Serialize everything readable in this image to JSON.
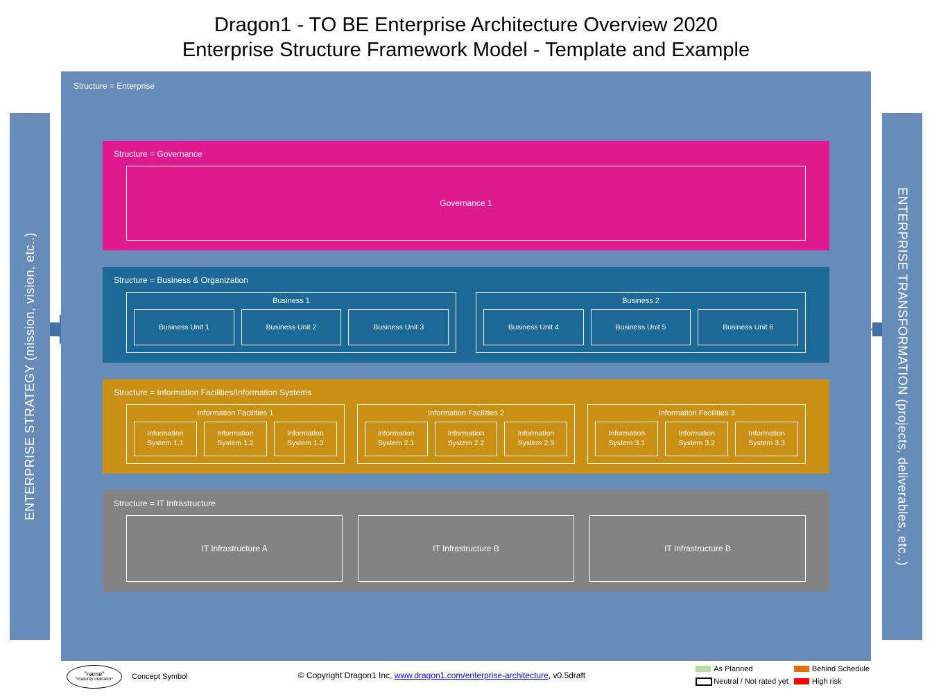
{
  "title": {
    "line1": "Dragon1 - TO BE Enterprise Architecture Overview 2020",
    "line2": "Enterprise Structure Framework Model - Template and Example"
  },
  "colors": {
    "pillar": "#688cb9",
    "enterprise_bg": "#688cb9",
    "governance_bg": "#e01a8e",
    "business_bg": "#1c6997",
    "information_bg": "#c99014",
    "it_bg": "#838383",
    "arrow": "#416fa6",
    "legend_green": "#b6dba0",
    "legend_orange": "#e46c0a",
    "legend_red": "#ff0000"
  },
  "pillars": {
    "left": "ENTERPRISE STRATEGY (mission, vision, etc..)",
    "right": "ENTERPRISE TRANSFORMATION (projects, deliverables, etc..)"
  },
  "enterprise": {
    "label": "Structure = Enterprise"
  },
  "governance": {
    "label": "Structure = Governance",
    "item": "Governance 1"
  },
  "business": {
    "label": "Structure = Business & Organization",
    "groups": [
      {
        "title": "Business 1",
        "units": [
          "Business Unit 1",
          "Business Unit 2",
          "Business Unit 3"
        ]
      },
      {
        "title": "Business 2",
        "units": [
          "Business Unit 4",
          "Business Unit 5",
          "Business Unit 6"
        ]
      }
    ]
  },
  "information": {
    "label": "Structure = Information Facilities/Information Systems",
    "groups": [
      {
        "title": "Information Facilities 1",
        "units": [
          "Information System 1.1",
          "Information System 1.2",
          "Information System 1.3"
        ]
      },
      {
        "title": "Information Facilities 2",
        "units": [
          "Information System 2.1",
          "Information System 2.2",
          "Information System 2.3"
        ]
      },
      {
        "title": "Information Facilities 3",
        "units": [
          "Information System 3.1",
          "Information System 3.2",
          "Information System 3.3"
        ]
      }
    ]
  },
  "it": {
    "label": "Structure = IT Infrastructure",
    "items": [
      "IT Infrastructure A",
      "IT Infrastructure B",
      "IT Infrastructure B"
    ]
  },
  "footer": {
    "concept_name": "\"name\"",
    "concept_sub": "*maturity indicator*",
    "concept_label": "Concept Symbol",
    "copyright_pre": "© Copyright Dragon1 Inc, ",
    "copyright_link": "www.dragon1.com/enterprise-architecture",
    "copyright_post": ", v0.5draft"
  },
  "legend": {
    "as_planned": "As Planned",
    "behind": "Behind Schedule",
    "neutral": "Neutral / Not rated yet",
    "high_risk": "High risk"
  }
}
